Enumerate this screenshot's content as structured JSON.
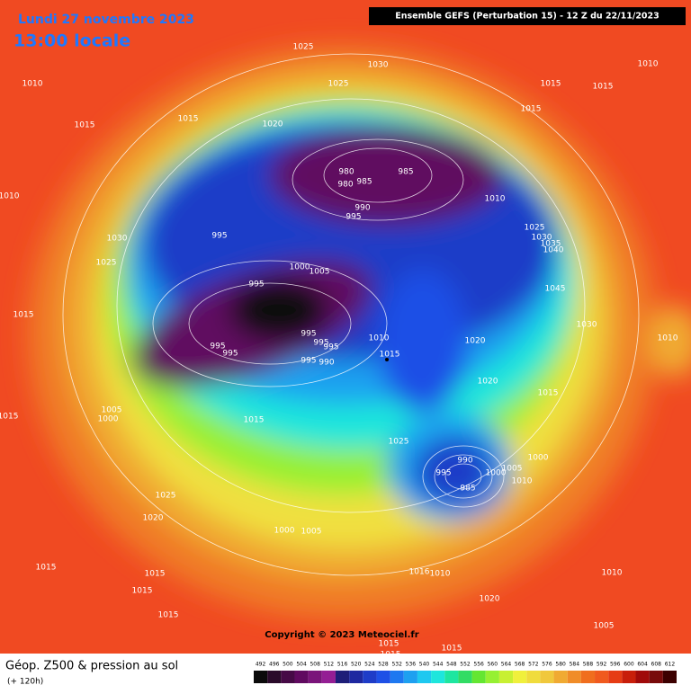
{
  "header": {
    "date": "Lundi 27 novembre 2023",
    "time": "13:00 locale",
    "run": "Ensemble GEFS  (Perturbation 15)  - 12 Z du 22/11/2023"
  },
  "copyright": "Copyright © 2023 Meteociel.fr",
  "footer": {
    "title": "Géop. Z500 & pression au sol",
    "lead": "(+ 120h)"
  },
  "isobars": [
    1025,
    1030,
    1010,
    1010,
    1025,
    1015,
    1015,
    1015,
    1015,
    1020,
    1015,
    980,
    985,
    980,
    985,
    1010,
    1010,
    990,
    995,
    995,
    1025,
    1030,
    1030,
    1035,
    1040,
    1025,
    1000,
    1005,
    995,
    1045,
    1015,
    995,
    1010,
    1020,
    1030,
    995,
    995,
    995,
    995,
    1015,
    995,
    990,
    1010,
    1020,
    1015,
    1005,
    1000,
    1015,
    1015,
    1025,
    1000,
    990,
    995,
    1000,
    1005,
    985,
    1010,
    1025,
    1020,
    1000,
    1005,
    1015,
    1015,
    1016,
    1010,
    1010,
    1015,
    1020,
    1015,
    1005,
    1015,
    1015,
    1015
  ],
  "legend": {
    "values": [
      492,
      496,
      500,
      504,
      508,
      512,
      516,
      520,
      524,
      528,
      532,
      536,
      540,
      544,
      548,
      552,
      556,
      560,
      564,
      568,
      572,
      576,
      580,
      584,
      588,
      592,
      596,
      600,
      604,
      608,
      612
    ],
    "colors": [
      "#0a0a0a",
      "#2a0a2a",
      "#460a46",
      "#600a60",
      "#7a147a",
      "#941e94",
      "#1e1e78",
      "#1e28a0",
      "#1e3cc8",
      "#1e50e6",
      "#1e78f0",
      "#1ea0f0",
      "#1ec8f0",
      "#1ee6dc",
      "#1ee6a0",
      "#32dc64",
      "#64e632",
      "#96f032",
      "#c8f032",
      "#f0f03c",
      "#f0dc3c",
      "#f0c83c",
      "#f0aa32",
      "#f08c28",
      "#f06e1e",
      "#f05a1e",
      "#e63c14",
      "#c81e0a",
      "#a00a0a",
      "#780a0a",
      "#3c0000"
    ]
  }
}
